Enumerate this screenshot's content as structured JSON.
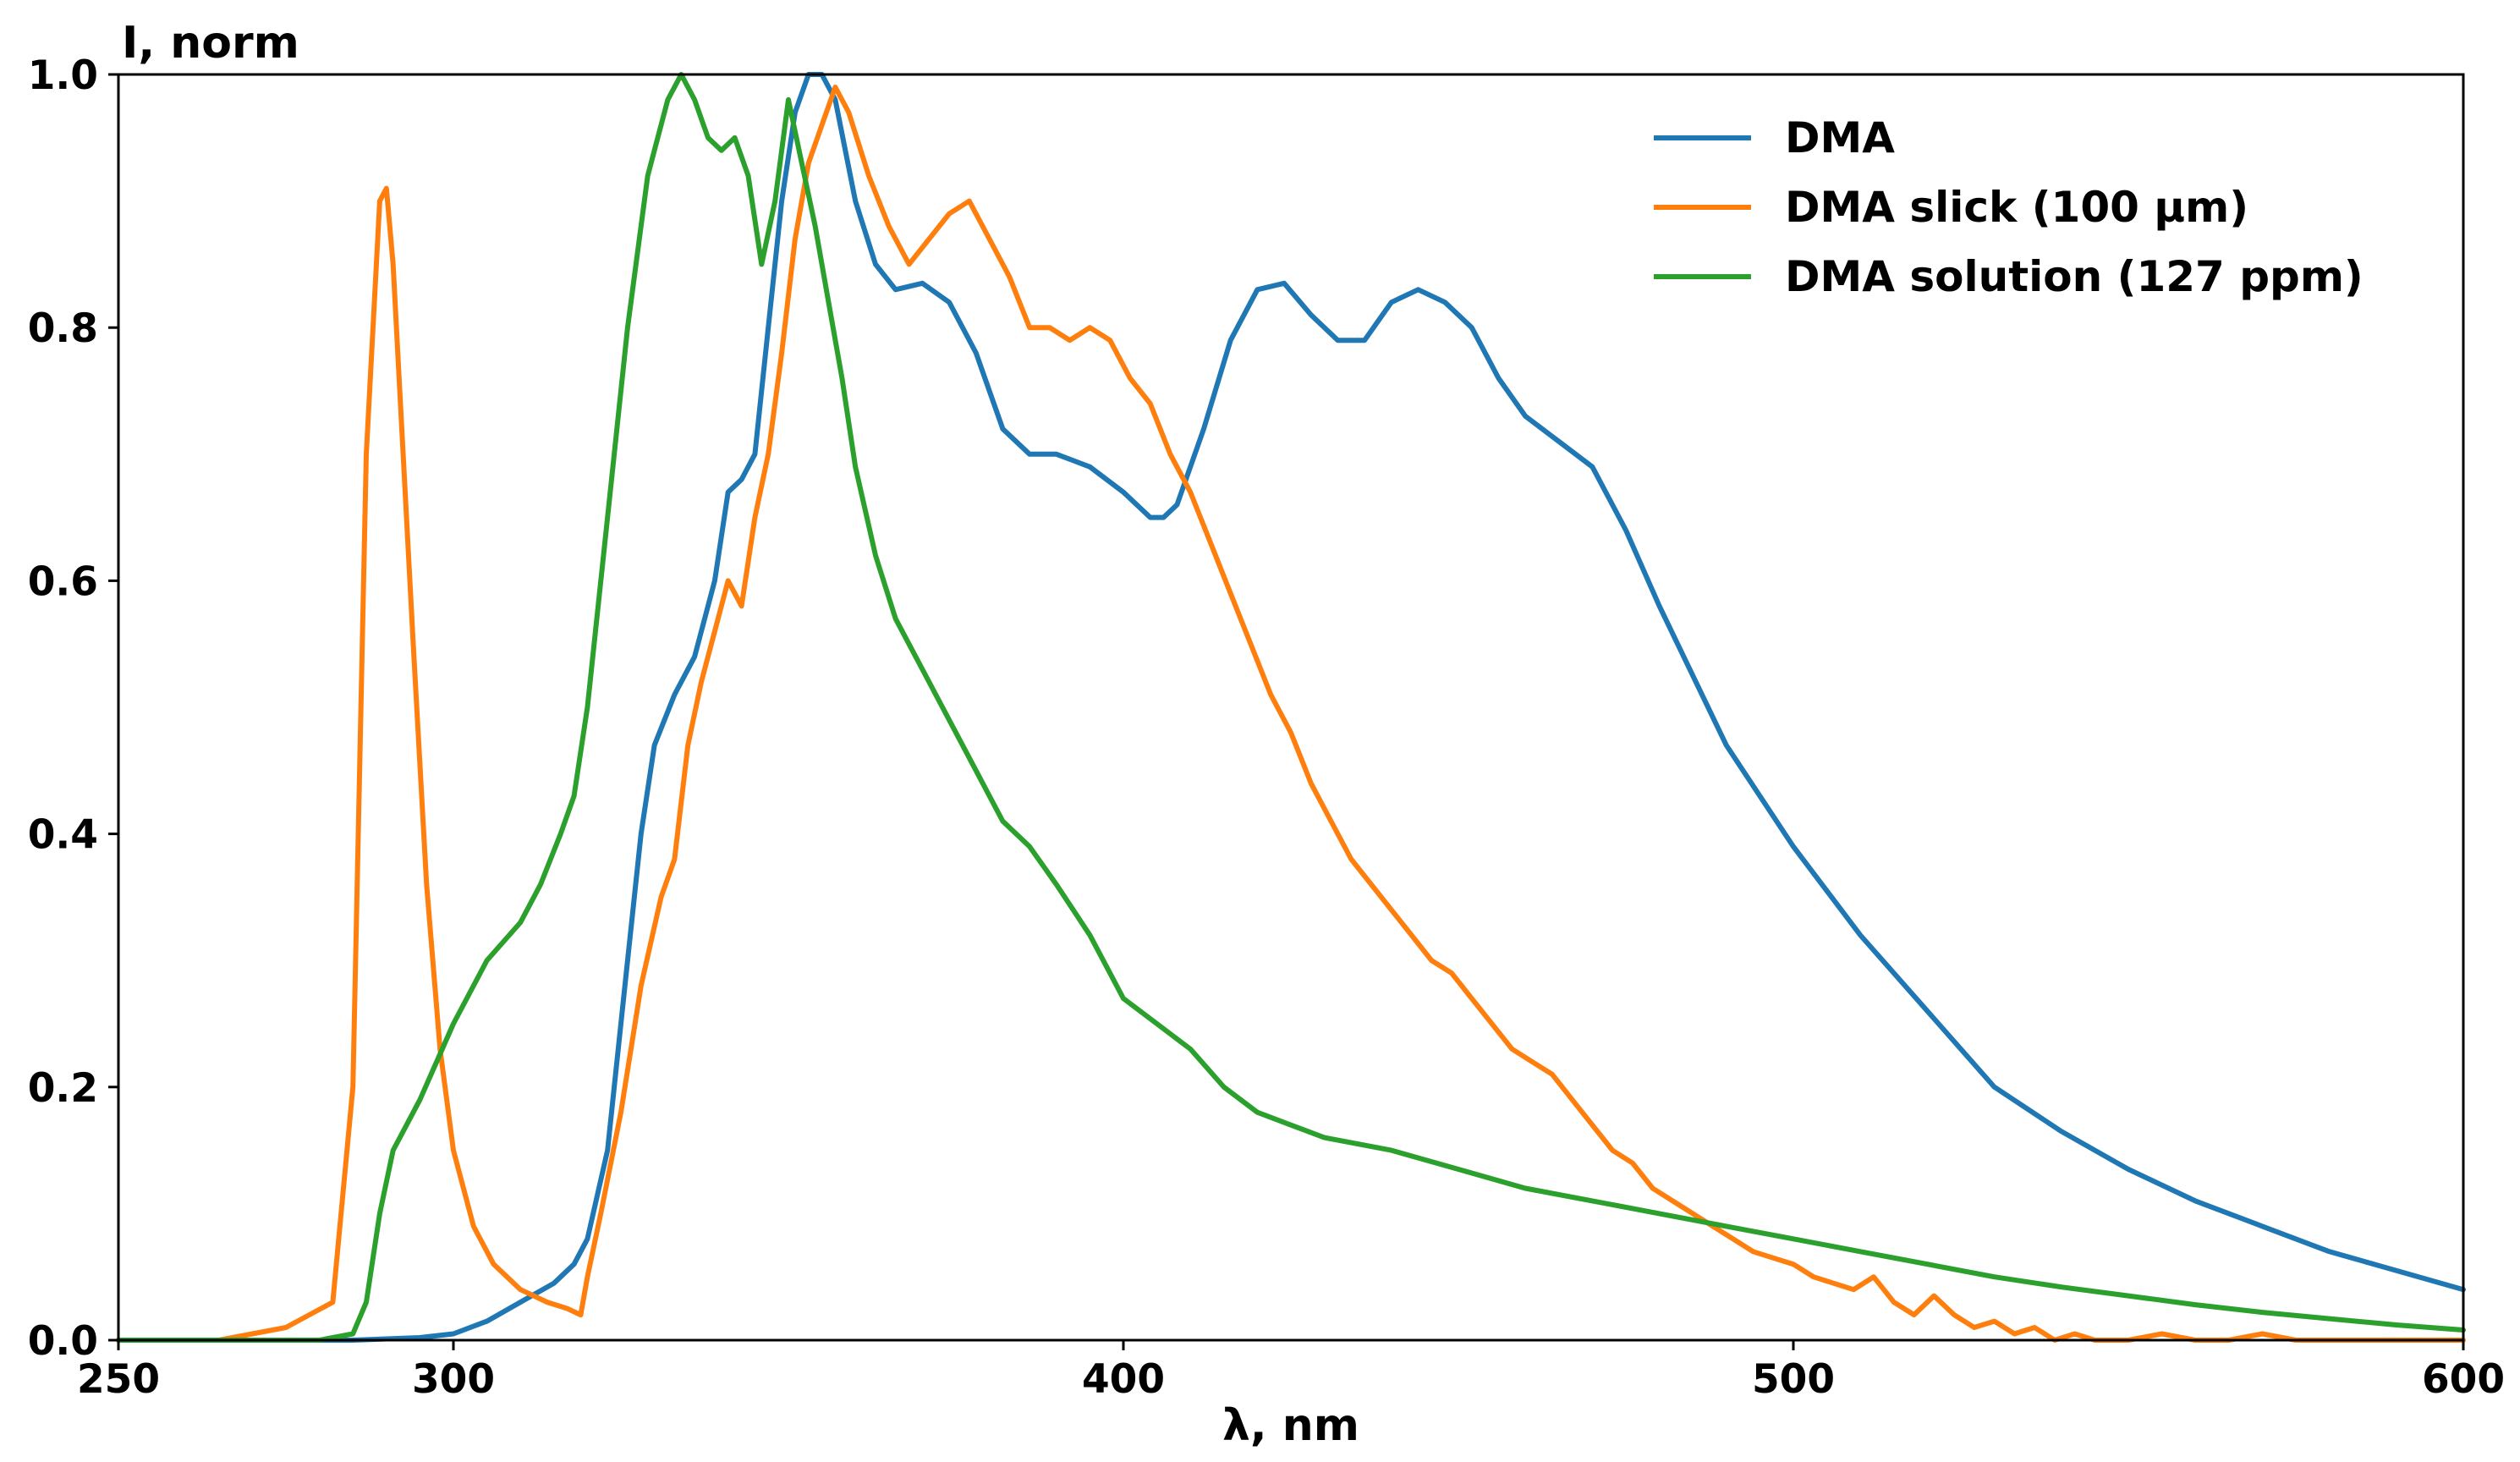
{
  "chart_data": {
    "type": "line",
    "title": "",
    "xlabel": "λ, nm",
    "ylabel": "I, norm",
    "xlim": [
      250,
      600
    ],
    "ylim": [
      0,
      1.0
    ],
    "xticks": [
      "250",
      "300",
      "400",
      "500",
      "600"
    ],
    "yticks": [
      "0.0",
      "0.2",
      "0.4",
      "0.6",
      "0.8",
      "1.0"
    ],
    "grid": false,
    "legend_position": "top-right",
    "series": [
      {
        "name": "DMA",
        "color": "#1f77b4",
        "x": [
          250,
          270,
          285,
          295,
          300,
          305,
          310,
          315,
          318,
          320,
          323,
          326,
          328,
          330,
          333,
          336,
          339,
          341,
          343,
          345,
          347,
          349,
          351,
          353,
          355,
          357,
          360,
          363,
          366,
          370,
          374,
          378,
          382,
          386,
          390,
          395,
          400,
          404,
          406,
          408,
          412,
          416,
          420,
          424,
          428,
          432,
          436,
          440,
          444,
          448,
          452,
          456,
          460,
          465,
          470,
          475,
          480,
          490,
          500,
          510,
          520,
          530,
          540,
          550,
          560,
          570,
          580,
          590,
          600
        ],
        "y": [
          0.0,
          0.0,
          0.0,
          0.002,
          0.005,
          0.015,
          0.03,
          0.045,
          0.06,
          0.08,
          0.15,
          0.3,
          0.4,
          0.47,
          0.51,
          0.54,
          0.6,
          0.67,
          0.68,
          0.7,
          0.8,
          0.9,
          0.97,
          1.0,
          1.0,
          0.98,
          0.9,
          0.85,
          0.83,
          0.835,
          0.82,
          0.78,
          0.72,
          0.7,
          0.7,
          0.69,
          0.67,
          0.65,
          0.65,
          0.66,
          0.72,
          0.79,
          0.83,
          0.835,
          0.81,
          0.79,
          0.79,
          0.82,
          0.83,
          0.82,
          0.8,
          0.76,
          0.73,
          0.71,
          0.69,
          0.64,
          0.58,
          0.47,
          0.39,
          0.32,
          0.26,
          0.2,
          0.165,
          0.135,
          0.11,
          0.09,
          0.07,
          0.055,
          0.04
        ]
      },
      {
        "name": "DMA slick (100 μm)",
        "color": "#ff7f0e",
        "x": [
          250,
          265,
          275,
          282,
          285,
          287,
          289,
          290,
          291,
          292,
          294,
          296,
          298,
          300,
          303,
          306,
          310,
          314,
          317,
          319,
          320,
          322,
          325,
          328,
          331,
          333,
          335,
          337,
          339,
          341,
          343,
          345,
          347,
          349,
          351,
          353,
          355,
          357,
          359,
          362,
          365,
          368,
          371,
          374,
          377,
          380,
          383,
          386,
          389,
          392,
          395,
          398,
          401,
          404,
          407,
          410,
          413,
          416,
          419,
          422,
          425,
          428,
          431,
          434,
          437,
          440,
          443,
          446,
          449,
          452,
          455,
          458,
          461,
          464,
          467,
          470,
          473,
          476,
          479,
          482,
          485,
          488,
          491,
          494,
          497,
          500,
          503,
          506,
          509,
          512,
          515,
          518,
          521,
          524,
          527,
          530,
          533,
          536,
          539,
          542,
          545,
          550,
          555,
          560,
          565,
          570,
          575,
          580,
          585,
          590,
          595,
          600
        ],
        "y": [
          0.0,
          0.0,
          0.01,
          0.03,
          0.2,
          0.7,
          0.9,
          0.91,
          0.85,
          0.75,
          0.55,
          0.36,
          0.23,
          0.15,
          0.09,
          0.06,
          0.04,
          0.03,
          0.025,
          0.02,
          0.05,
          0.1,
          0.18,
          0.28,
          0.35,
          0.38,
          0.47,
          0.52,
          0.56,
          0.6,
          0.58,
          0.65,
          0.7,
          0.78,
          0.87,
          0.93,
          0.96,
          0.99,
          0.97,
          0.92,
          0.88,
          0.85,
          0.87,
          0.89,
          0.9,
          0.87,
          0.84,
          0.8,
          0.8,
          0.79,
          0.8,
          0.79,
          0.76,
          0.74,
          0.7,
          0.67,
          0.63,
          0.59,
          0.55,
          0.51,
          0.48,
          0.44,
          0.41,
          0.38,
          0.36,
          0.34,
          0.32,
          0.3,
          0.29,
          0.27,
          0.25,
          0.23,
          0.22,
          0.21,
          0.19,
          0.17,
          0.15,
          0.14,
          0.12,
          0.11,
          0.1,
          0.09,
          0.08,
          0.07,
          0.065,
          0.06,
          0.05,
          0.045,
          0.04,
          0.05,
          0.03,
          0.02,
          0.035,
          0.02,
          0.01,
          0.015,
          0.005,
          0.01,
          0.0,
          0.005,
          0.0,
          0.0,
          0.005,
          0.0,
          0.0,
          0.005,
          0.0,
          0.0,
          0.0,
          0.0,
          0.0,
          0.0
        ]
      },
      {
        "name": "DMA solution (127 ppm)",
        "color": "#2ca02c",
        "x": [
          250,
          270,
          280,
          285,
          287,
          289,
          291,
          293,
          295,
          300,
          305,
          310,
          313,
          316,
          318,
          320,
          323,
          326,
          329,
          332,
          334,
          336,
          338,
          340,
          342,
          344,
          346,
          348,
          350,
          352,
          354,
          356,
          358,
          360,
          363,
          366,
          370,
          374,
          378,
          382,
          386,
          390,
          395,
          400,
          405,
          410,
          415,
          420,
          425,
          430,
          440,
          450,
          460,
          470,
          480,
          490,
          500,
          510,
          520,
          530,
          540,
          550,
          560,
          570,
          580,
          590,
          600
        ],
        "y": [
          0.0,
          0.0,
          0.0,
          0.005,
          0.03,
          0.1,
          0.15,
          0.17,
          0.19,
          0.25,
          0.3,
          0.33,
          0.36,
          0.4,
          0.43,
          0.5,
          0.65,
          0.8,
          0.92,
          0.98,
          1.0,
          0.98,
          0.95,
          0.94,
          0.95,
          0.92,
          0.85,
          0.9,
          0.98,
          0.93,
          0.88,
          0.82,
          0.76,
          0.69,
          0.62,
          0.57,
          0.53,
          0.49,
          0.45,
          0.41,
          0.39,
          0.36,
          0.32,
          0.27,
          0.25,
          0.23,
          0.2,
          0.18,
          0.17,
          0.16,
          0.15,
          0.135,
          0.12,
          0.11,
          0.1,
          0.09,
          0.08,
          0.07,
          0.06,
          0.05,
          0.042,
          0.035,
          0.028,
          0.022,
          0.017,
          0.012,
          0.008
        ]
      }
    ]
  }
}
